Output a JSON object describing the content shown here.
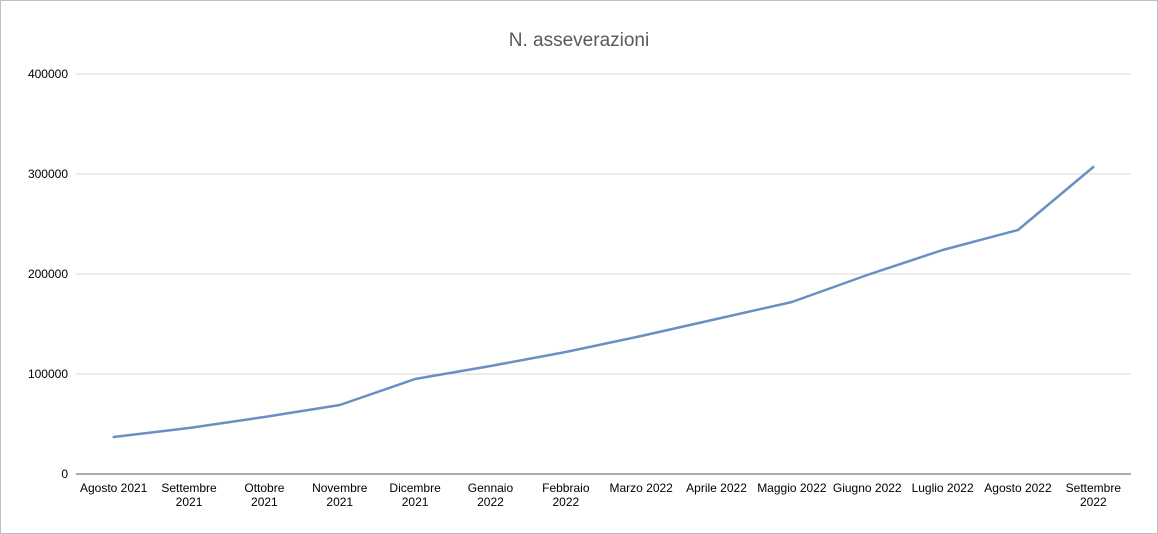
{
  "chart_data": {
    "type": "line",
    "title": "N. asseverazioni",
    "xlabel": "",
    "ylabel": "",
    "ylim": [
      0,
      400000
    ],
    "yticks": [
      0,
      100000,
      200000,
      300000,
      400000
    ],
    "ytick_labels": [
      "0",
      "100000",
      "200000",
      "300000",
      "400000"
    ],
    "grid": true,
    "legend": "none",
    "categories": [
      [
        "Agosto 2021"
      ],
      [
        "Settembre",
        "2021"
      ],
      [
        "Ottobre",
        "2021"
      ],
      [
        "Novembre",
        "2021"
      ],
      [
        "Dicembre",
        "2021"
      ],
      [
        "Gennaio",
        "2022"
      ],
      [
        "Febbraio",
        "2022"
      ],
      [
        "Marzo 2022"
      ],
      [
        "Aprile 2022"
      ],
      [
        "Maggio 2022"
      ],
      [
        "Giugno 2022"
      ],
      [
        "Luglio 2022"
      ],
      [
        "Agosto 2022"
      ],
      [
        "Settembre",
        "2022"
      ]
    ],
    "series": [
      {
        "values": [
          37000,
          46000,
          57000,
          69000,
          95000,
          108000,
          122000,
          138000,
          155000,
          172000,
          199000,
          224000,
          244000,
          307000
        ],
        "color": "#6a8fc4"
      }
    ],
    "colors": {
      "grid": "#d9d9d9",
      "axis": "#595959",
      "line": "#6a8fc4"
    }
  }
}
